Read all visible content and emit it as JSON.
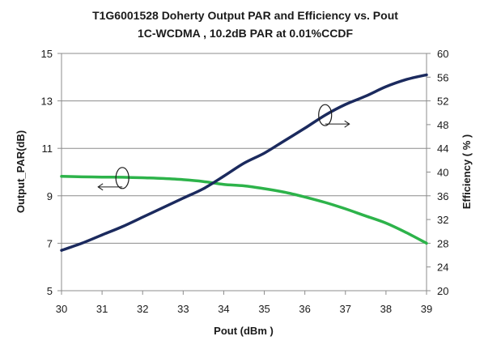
{
  "chart_data": {
    "type": "line",
    "title": "T1G6001528 Doherty Output  PAR and Efficiency vs. Pout",
    "subtitle": "1C-WCDMA , 10.2dB PAR at 0.01%CCDF",
    "xlabel": "Pout (dBm )",
    "ylabel": "Output_PAR(dB)",
    "y2label": "Efficiency ( % )",
    "xlim": [
      30,
      39
    ],
    "ylim": [
      5,
      15
    ],
    "y2lim": [
      20,
      60
    ],
    "x_ticks": [
      "30",
      "31",
      "32",
      "33",
      "34",
      "35",
      "36",
      "37",
      "38",
      "39"
    ],
    "y_ticks": [
      "5",
      "7",
      "9",
      "11",
      "13",
      "15"
    ],
    "y2_ticks": [
      "20",
      "24",
      "28",
      "32",
      "36",
      "40",
      "44",
      "48",
      "52",
      "56",
      "60"
    ],
    "grid": "horizontal",
    "series": [
      {
        "axis": "left",
        "color": "#2db34a",
        "x": [
          30,
          30.5,
          31,
          31.5,
          32,
          32.5,
          33,
          33.5,
          34,
          34.5,
          35,
          35.5,
          36,
          36.5,
          37,
          37.5,
          38,
          38.5,
          39
        ],
        "values": [
          9.82,
          9.8,
          9.79,
          9.78,
          9.76,
          9.73,
          9.68,
          9.6,
          9.48,
          9.42,
          9.3,
          9.15,
          8.95,
          8.72,
          8.45,
          8.15,
          7.85,
          7.45,
          7.0
        ]
      },
      {
        "axis": "right",
        "color": "#1b2a5e",
        "x": [
          30,
          30.5,
          31,
          31.5,
          32,
          32.5,
          33,
          33.5,
          34,
          34.5,
          35,
          35.5,
          36,
          36.5,
          37,
          37.5,
          38,
          38.5,
          39
        ],
        "values": [
          26.8,
          28.0,
          29.4,
          30.8,
          32.4,
          34.0,
          35.6,
          37.2,
          39.3,
          41.5,
          43.2,
          45.3,
          47.4,
          49.6,
          51.4,
          52.8,
          54.4,
          55.6,
          56.4
        ]
      }
    ],
    "annotations": [
      {
        "marker": "ellipse",
        "arrow": "left",
        "x": 31.5,
        "axis": "left",
        "y": 9.75
      },
      {
        "marker": "ellipse",
        "arrow": "right",
        "x": 36.5,
        "axis": "right",
        "y": 49.6
      }
    ]
  }
}
